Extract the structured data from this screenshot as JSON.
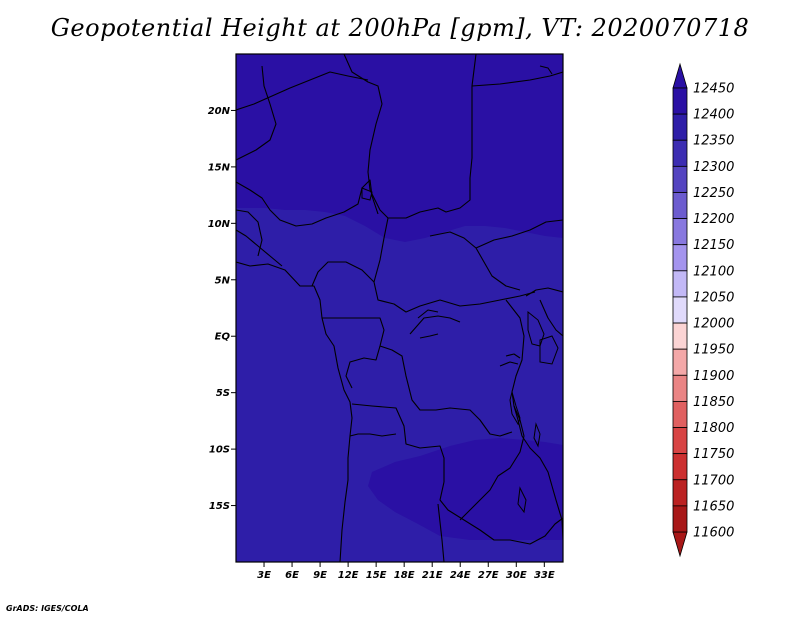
{
  "title": "Geopotential Height at 200hPa [gpm], VT: 2020070718",
  "credit": "GrADS: IGES/COLA",
  "map": {
    "lat_labels": [
      "20N",
      "15N",
      "10N",
      "5N",
      "EQ",
      "5S",
      "10S",
      "15S"
    ],
    "lat_values": [
      20,
      15,
      10,
      5,
      0,
      -5,
      -10,
      -15
    ],
    "lon_labels": [
      "3E",
      "6E",
      "9E",
      "12E",
      "15E",
      "18E",
      "21E",
      "24E",
      "27E",
      "30E",
      "33E"
    ],
    "lon_values": [
      3,
      6,
      9,
      12,
      15,
      18,
      21,
      24,
      27,
      30,
      33
    ],
    "lon_range": [
      0,
      35
    ],
    "lat_range": [
      -20,
      25
    ],
    "fill_colors": {
      "above_12400": "#2a10a4",
      "12350_12400": "#2e1ea8"
    }
  },
  "colorbar": {
    "labels": [
      "12450",
      "12400",
      "12350",
      "12300",
      "12250",
      "12200",
      "12150",
      "12100",
      "12050",
      "12000",
      "11950",
      "11900",
      "11850",
      "11800",
      "11750",
      "11700",
      "11650",
      "11600"
    ],
    "colors": [
      "#2a10a4",
      "#2e1ea8",
      "#3c2db2",
      "#5444c0",
      "#6c5ccf",
      "#8878df",
      "#a494ee",
      "#c2b8f6",
      "#e0dafb",
      "#ffffff",
      "#fbd4d4",
      "#f4a8a8",
      "#ea8484",
      "#e06060",
      "#d84444",
      "#cc3030",
      "#bb2222",
      "#a81818"
    ],
    "top_arrow_color": "#2a10a4",
    "bottom_arrow_color": "#a81818"
  }
}
